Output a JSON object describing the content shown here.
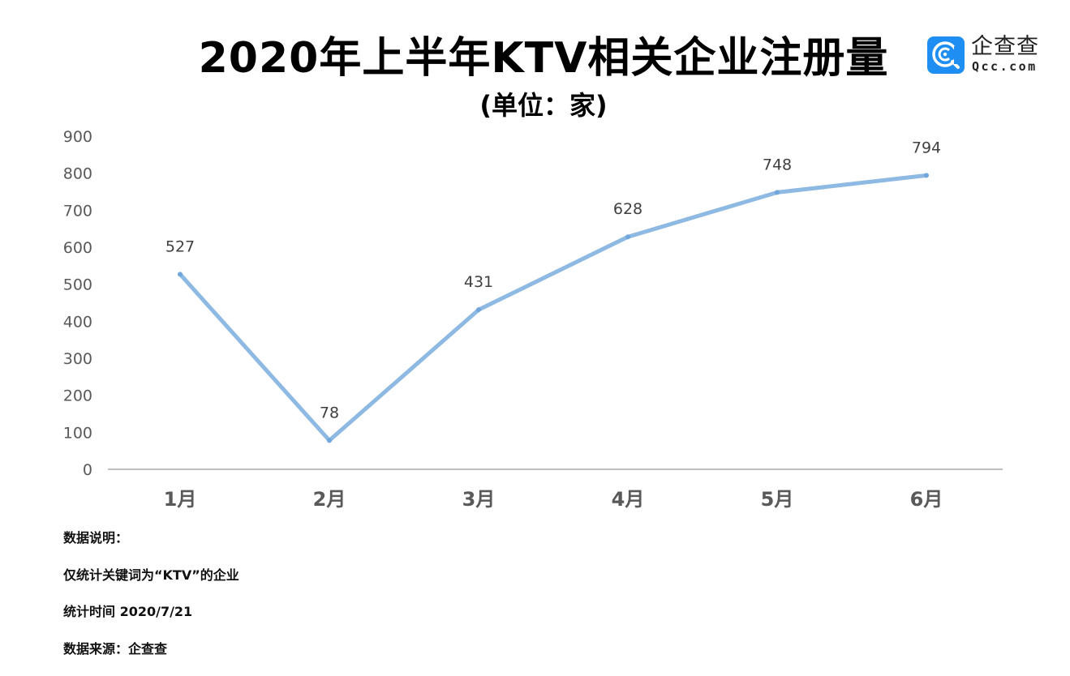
{
  "header": {
    "title": "2020年上半年KTV相关企业注册量",
    "subtitle": "(单位：家)"
  },
  "logo": {
    "name_cn": "企查查",
    "name_en": "Qcc.com",
    "brand_color": "#1e8ef3"
  },
  "notes": {
    "heading": "数据说明：",
    "lines": [
      "仅统计关键词为“KTV”的企业",
      "统计时间 2020/7/21",
      "数据来源：企查查"
    ]
  },
  "chart_data": {
    "type": "line",
    "title": "2020年上半年KTV相关企业注册量",
    "subtitle": "(单位：家)",
    "xlabel": "",
    "ylabel": "",
    "categories": [
      "1月",
      "2月",
      "3月",
      "4月",
      "5月",
      "6月"
    ],
    "series": [
      {
        "name": "KTV相关企业注册量",
        "values": [
          527,
          78,
          431,
          628,
          748,
          794
        ],
        "color": "#8db9e3"
      }
    ],
    "y_ticks": [
      0,
      100,
      200,
      300,
      400,
      500,
      600,
      700,
      800,
      900
    ],
    "ylim": [
      0,
      900
    ],
    "grid": false,
    "legend": "none",
    "data_labels": true
  }
}
